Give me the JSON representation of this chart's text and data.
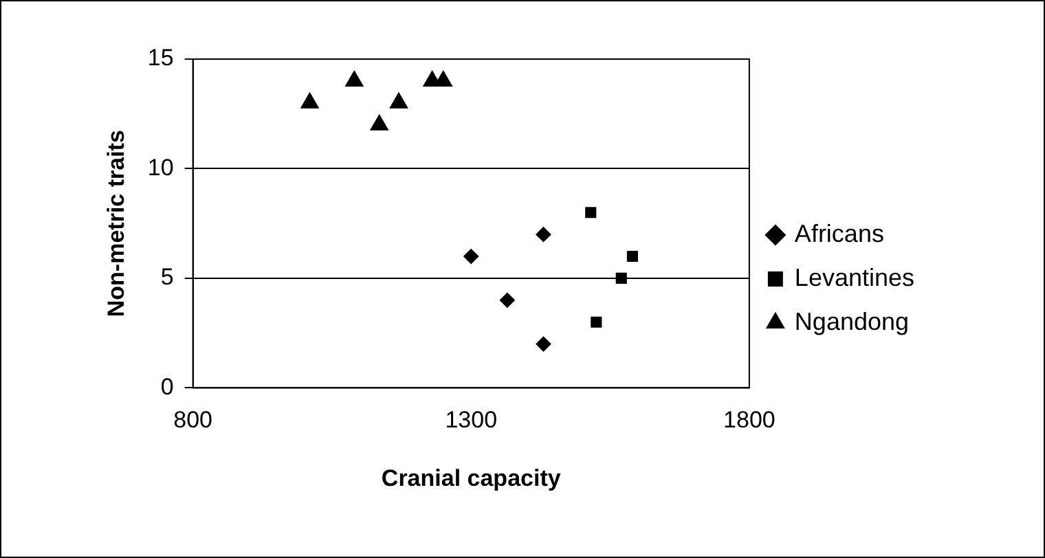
{
  "chart_data": {
    "type": "scatter",
    "xlabel": "Cranial capacity",
    "ylabel": "Non-metric traits",
    "xlim": [
      800,
      1800
    ],
    "xticks": [
      800,
      1300,
      1800
    ],
    "ylim": [
      0,
      15
    ],
    "yticks": [
      0,
      5,
      10,
      15
    ],
    "grid": "y",
    "legend": "right",
    "series": [
      {
        "name": "Africans",
        "color": "#000000",
        "marker": "diamond",
        "x": [
          1300,
          1365,
          1430,
          1430
        ],
        "values": [
          6,
          4,
          7,
          2
        ]
      },
      {
        "name": "Levantines",
        "color": "#000000",
        "marker": "square",
        "x": [
          1515,
          1525,
          1570,
          1590
        ],
        "values": [
          8,
          3,
          5,
          6
        ]
      },
      {
        "name": "Ngandong",
        "color": "#000000",
        "marker": "triangle",
        "x": [
          1010,
          1090,
          1135,
          1170,
          1230,
          1250
        ],
        "values": [
          13,
          14,
          12,
          13,
          14,
          14
        ]
      }
    ]
  }
}
